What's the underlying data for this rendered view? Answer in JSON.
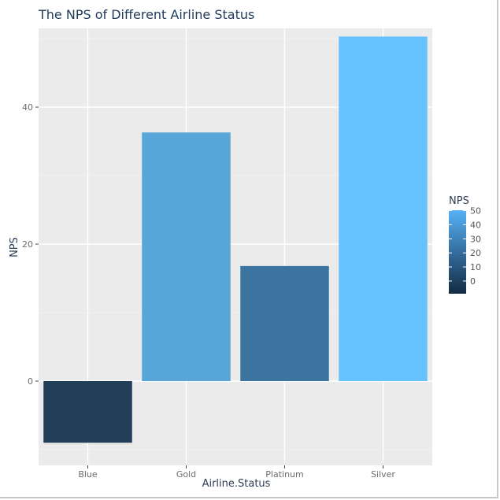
{
  "chart_data": {
    "type": "bar",
    "title": "The NPS of Different Airline Status",
    "xlabel": "Airline.Status",
    "ylabel": "NPS",
    "categories": [
      "Blue",
      "Gold",
      "Platinum",
      "Silver"
    ],
    "values": [
      -9,
      36.3,
      16.8,
      50.3
    ],
    "ylim": [
      -12.3,
      51.5
    ],
    "yticks": [
      0,
      20,
      40
    ],
    "grid": true,
    "colors": [
      "#223e58",
      "#58a5d8",
      "#3c74a0",
      "#66c2fd"
    ],
    "legend": {
      "title": "NPS",
      "position": "right",
      "ticks": [
        0,
        10,
        20,
        30,
        40,
        50
      ],
      "range": [
        -9,
        50.3
      ],
      "low_color": "#132b43",
      "high_color": "#56b1f7"
    }
  },
  "colors": {
    "panel_background": "#ebebeb",
    "grid_major": "#ffffff",
    "grid_minor": "#f3f3f3"
  }
}
